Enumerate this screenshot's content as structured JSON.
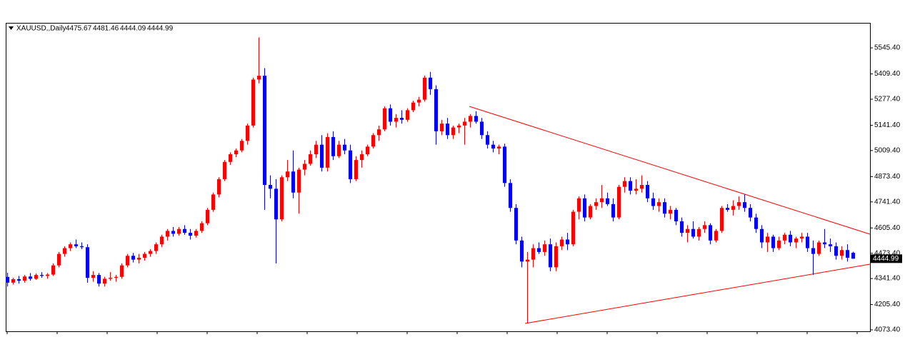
{
  "chart_data": {
    "type": "candlestick",
    "title": "XAUUSD,,Daily",
    "up_color": "#ff0000",
    "down_color": "#0000ff",
    "ylim": [
      4066,
      5676
    ],
    "yticks": [
      {
        "value": 4073.4,
        "label": "4073.40"
      },
      {
        "value": 4205.4,
        "label": "4205.40"
      },
      {
        "value": 4341.4,
        "label": "4341.40"
      },
      {
        "value": 4473.4,
        "label": "4473.40"
      },
      {
        "value": 4605.4,
        "label": "4605.40"
      },
      {
        "value": 4741.4,
        "label": "4741.40"
      },
      {
        "value": 4873.4,
        "label": "4873.40"
      },
      {
        "value": 5009.4,
        "label": "5009.40"
      },
      {
        "value": 5141.4,
        "label": "5141.40"
      },
      {
        "value": 5277.4,
        "label": "5277.40"
      },
      {
        "value": 5409.4,
        "label": "5409.40"
      },
      {
        "value": 5545.4,
        "label": "5545.40"
      }
    ],
    "ohlc": [
      [
        4350,
        4372,
        4300,
        4320
      ],
      [
        4320,
        4345,
        4310,
        4338
      ],
      [
        4338,
        4355,
        4315,
        4330
      ],
      [
        4330,
        4360,
        4320,
        4352
      ],
      [
        4352,
        4370,
        4330,
        4340
      ],
      [
        4340,
        4368,
        4335,
        4360
      ],
      [
        4360,
        4375,
        4345,
        4355
      ],
      [
        4355,
        4370,
        4340,
        4362
      ],
      [
        4362,
        4420,
        4355,
        4410
      ],
      [
        4410,
        4480,
        4400,
        4470
      ],
      [
        4470,
        4510,
        4455,
        4500
      ],
      [
        4500,
        4530,
        4485,
        4520
      ],
      [
        4520,
        4545,
        4500,
        4510
      ],
      [
        4510,
        4530,
        4495,
        4505
      ],
      [
        4505,
        4520,
        4320,
        4345
      ],
      [
        4345,
        4380,
        4325,
        4360
      ],
      [
        4360,
        4370,
        4300,
        4315
      ],
      [
        4315,
        4350,
        4300,
        4340
      ],
      [
        4340,
        4375,
        4330,
        4345
      ],
      [
        4345,
        4360,
        4325,
        4350
      ],
      [
        4350,
        4420,
        4340,
        4410
      ],
      [
        4410,
        4470,
        4400,
        4460
      ],
      [
        4460,
        4475,
        4425,
        4440
      ],
      [
        4440,
        4470,
        4420,
        4450
      ],
      [
        4450,
        4480,
        4435,
        4470
      ],
      [
        4470,
        4495,
        4455,
        4485
      ],
      [
        4485,
        4530,
        4470,
        4520
      ],
      [
        4520,
        4570,
        4505,
        4560
      ],
      [
        4560,
        4600,
        4540,
        4590
      ],
      [
        4590,
        4610,
        4560,
        4575
      ],
      [
        4575,
        4610,
        4565,
        4600
      ],
      [
        4600,
        4620,
        4570,
        4580
      ],
      [
        4580,
        4600,
        4545,
        4565
      ],
      [
        4565,
        4600,
        4555,
        4590
      ],
      [
        4590,
        4640,
        4580,
        4630
      ],
      [
        4630,
        4710,
        4620,
        4700
      ],
      [
        4700,
        4790,
        4690,
        4780
      ],
      [
        4780,
        4870,
        4765,
        4860
      ],
      [
        4860,
        4960,
        4850,
        4950
      ],
      [
        4950,
        5000,
        4935,
        4990
      ],
      [
        4990,
        5020,
        4975,
        5010
      ],
      [
        5010,
        5070,
        5000,
        5060
      ],
      [
        5060,
        5150,
        5040,
        5140
      ],
      [
        5140,
        5390,
        5130,
        5380
      ],
      [
        5380,
        5600,
        5360,
        5400
      ],
      [
        5400,
        5440,
        4700,
        4830
      ],
      [
        4830,
        4880,
        4760,
        4810
      ],
      [
        4810,
        4860,
        4420,
        4650
      ],
      [
        4650,
        4880,
        4640,
        4870
      ],
      [
        4870,
        4960,
        4850,
        4900
      ],
      [
        4900,
        5010,
        4760,
        4790
      ],
      [
        4790,
        4920,
        4680,
        4910
      ],
      [
        4910,
        4960,
        4880,
        4940
      ],
      [
        4940,
        5010,
        4930,
        4990
      ],
      [
        4990,
        5060,
        4970,
        5040
      ],
      [
        5040,
        5090,
        4900,
        4920
      ],
      [
        4920,
        5100,
        4900,
        5080
      ],
      [
        5080,
        5110,
        4960,
        4980
      ],
      [
        4980,
        5060,
        4970,
        5040
      ],
      [
        5040,
        5070,
        4990,
        5010
      ],
      [
        5010,
        5040,
        4840,
        4860
      ],
      [
        4860,
        4980,
        4850,
        4960
      ],
      [
        4960,
        5010,
        4920,
        4990
      ],
      [
        4990,
        5040,
        4980,
        5030
      ],
      [
        5030,
        5100,
        5020,
        5090
      ],
      [
        5090,
        5140,
        5060,
        5120
      ],
      [
        5120,
        5240,
        5110,
        5230
      ],
      [
        5230,
        5250,
        5140,
        5160
      ],
      [
        5160,
        5200,
        5130,
        5180
      ],
      [
        5180,
        5220,
        5150,
        5170
      ],
      [
        5170,
        5230,
        5160,
        5220
      ],
      [
        5220,
        5270,
        5210,
        5260
      ],
      [
        5260,
        5290,
        5240,
        5275
      ],
      [
        5275,
        5400,
        5265,
        5390
      ],
      [
        5390,
        5420,
        5300,
        5330
      ],
      [
        5330,
        5350,
        5040,
        5110
      ],
      [
        5110,
        5170,
        5090,
        5150
      ],
      [
        5150,
        5180,
        5070,
        5090
      ],
      [
        5090,
        5140,
        5070,
        5130
      ],
      [
        5130,
        5150,
        5100,
        5140
      ],
      [
        5140,
        5180,
        5040,
        5160
      ],
      [
        5160,
        5200,
        5130,
        5190
      ],
      [
        5190,
        5215,
        5150,
        5160
      ],
      [
        5160,
        5180,
        5070,
        5090
      ],
      [
        5090,
        5110,
        5020,
        5040
      ],
      [
        5040,
        5060,
        5000,
        5020
      ],
      [
        5020,
        5040,
        4990,
        5030
      ],
      [
        5030,
        5045,
        4820,
        4840
      ],
      [
        4840,
        4860,
        4690,
        4710
      ],
      [
        4710,
        4730,
        4520,
        4540
      ],
      [
        4540,
        4560,
        4400,
        4430
      ],
      [
        4430,
        4480,
        4110,
        4440
      ],
      [
        4440,
        4520,
        4400,
        4500
      ],
      [
        4500,
        4530,
        4470,
        4480
      ],
      [
        4480,
        4540,
        4460,
        4520
      ],
      [
        4520,
        4550,
        4380,
        4400
      ],
      [
        4400,
        4530,
        4380,
        4510
      ],
      [
        4510,
        4560,
        4490,
        4545
      ],
      [
        4545,
        4580,
        4490,
        4520
      ],
      [
        4520,
        4700,
        4510,
        4690
      ],
      [
        4690,
        4770,
        4650,
        4760
      ],
      [
        4760,
        4780,
        4640,
        4660
      ],
      [
        4660,
        4730,
        4650,
        4720
      ],
      [
        4720,
        4760,
        4700,
        4740
      ],
      [
        4740,
        4830,
        4710,
        4760
      ],
      [
        4760,
        4790,
        4720,
        4730
      ],
      [
        4730,
        4760,
        4640,
        4660
      ],
      [
        4660,
        4830,
        4650,
        4820
      ],
      [
        4820,
        4870,
        4790,
        4850
      ],
      [
        4850,
        4870,
        4780,
        4800
      ],
      [
        4800,
        4860,
        4780,
        4810
      ],
      [
        4810,
        4880,
        4790,
        4830
      ],
      [
        4830,
        4850,
        4740,
        4760
      ],
      [
        4760,
        4790,
        4700,
        4720
      ],
      [
        4720,
        4760,
        4690,
        4740
      ],
      [
        4740,
        4760,
        4660,
        4680
      ],
      [
        4680,
        4720,
        4650,
        4700
      ],
      [
        4700,
        4710,
        4620,
        4640
      ],
      [
        4640,
        4660,
        4560,
        4580
      ],
      [
        4580,
        4620,
        4530,
        4600
      ],
      [
        4600,
        4640,
        4550,
        4560
      ],
      [
        4560,
        4610,
        4540,
        4600
      ],
      [
        4600,
        4640,
        4580,
        4620
      ],
      [
        4620,
        4630,
        4520,
        4540
      ],
      [
        4540,
        4600,
        4530,
        4590
      ],
      [
        4590,
        4720,
        4580,
        4710
      ],
      [
        4710,
        4730,
        4690,
        4700
      ],
      [
        4700,
        4750,
        4670,
        4720
      ],
      [
        4720,
        4770,
        4700,
        4740
      ],
      [
        4740,
        4780,
        4690,
        4710
      ],
      [
        4710,
        4730,
        4640,
        4660
      ],
      [
        4660,
        4680,
        4580,
        4600
      ],
      [
        4600,
        4620,
        4500,
        4530
      ],
      [
        4530,
        4580,
        4480,
        4560
      ],
      [
        4560,
        4570,
        4480,
        4500
      ],
      [
        4500,
        4560,
        4490,
        4540
      ],
      [
        4540,
        4580,
        4520,
        4570
      ],
      [
        4570,
        4590,
        4510,
        4530
      ],
      [
        4530,
        4560,
        4500,
        4550
      ],
      [
        4550,
        4580,
        4530,
        4560
      ],
      [
        4560,
        4580,
        4480,
        4500
      ],
      [
        4500,
        4540,
        4360,
        4470
      ],
      [
        4470,
        4540,
        4460,
        4530
      ],
      [
        4530,
        4600,
        4500,
        4520
      ],
      [
        4520,
        4550,
        4480,
        4510
      ],
      [
        4510,
        4530,
        4440,
        4460
      ],
      [
        4460,
        4510,
        4440,
        4490
      ],
      [
        4490,
        4520,
        4430,
        4450
      ],
      [
        4475.67,
        4481.46,
        4444.09,
        4444.99
      ]
    ]
  }
}
